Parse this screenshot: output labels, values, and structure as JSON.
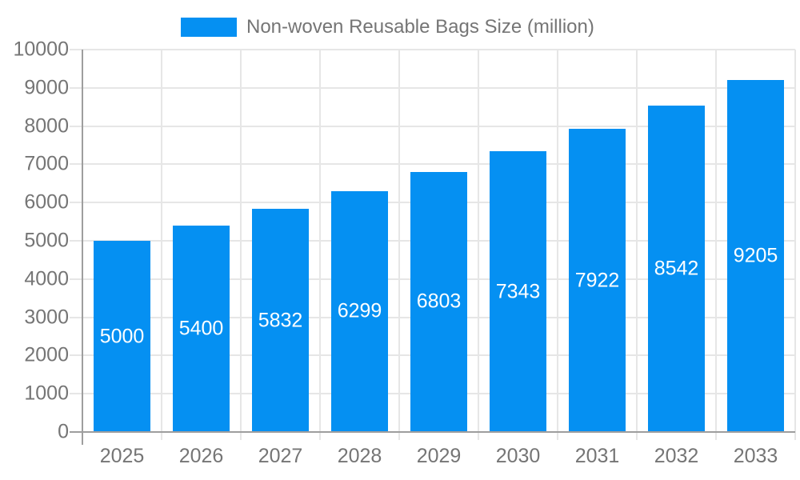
{
  "legend": {
    "label": "Non-woven Reusable Bags Size (million)"
  },
  "chart_data": {
    "type": "bar",
    "title": "Non-woven Reusable Bags Size (million)",
    "categories": [
      "2025",
      "2026",
      "2027",
      "2028",
      "2029",
      "2030",
      "2031",
      "2032",
      "2033"
    ],
    "values": [
      5000,
      5400,
      5832,
      6299,
      6803,
      7343,
      7922,
      8542,
      9205
    ],
    "series": [
      {
        "name": "Non-woven Reusable Bags Size (million)",
        "values": [
          5000,
          5400,
          5832,
          6299,
          6803,
          7343,
          7922,
          8542,
          9205
        ]
      }
    ],
    "xlabel": "",
    "ylabel": "",
    "ylim": [
      0,
      10000
    ],
    "ytick_step": 1000,
    "yticks": [
      0,
      1000,
      2000,
      3000,
      4000,
      5000,
      6000,
      7000,
      8000,
      9000,
      10000
    ],
    "grid": true,
    "value_labels": "inside-center",
    "legend_position": "top",
    "colors": {
      "bar": "#0590F2",
      "bar_label": "#FFFFFF",
      "grid": "#E6E6E6",
      "axis": "#9E9E9E",
      "text": "#757575",
      "background": "#FFFFFF"
    }
  }
}
